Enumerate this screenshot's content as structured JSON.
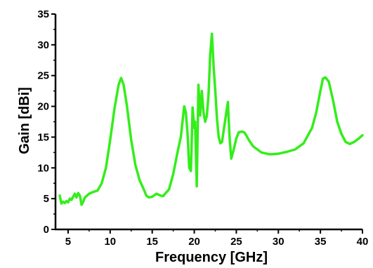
{
  "chart_data": {
    "type": "line",
    "title": "",
    "xlabel": "Frequency [GHz]",
    "ylabel": "Gain [dBi]",
    "xlim": [
      3.5,
      40
    ],
    "ylim": [
      0,
      35
    ],
    "x_ticks": [
      5,
      10,
      15,
      20,
      25,
      30,
      35,
      40
    ],
    "y_ticks": [
      0,
      5,
      10,
      15,
      20,
      25,
      30,
      35
    ],
    "grid": false,
    "legend": "none",
    "colors": {
      "series": "#33ee1a",
      "axis": "#000000"
    },
    "series": [
      {
        "x": [
          4.0,
          4.2,
          4.4,
          4.6,
          4.8,
          5.0,
          5.2,
          5.4,
          5.6,
          5.8,
          6.0,
          6.2,
          6.4,
          6.6,
          6.8,
          7.0,
          7.5,
          8.0,
          8.5,
          9.0,
          9.5,
          10.0,
          10.5,
          11.0,
          11.3,
          11.6,
          12.0,
          12.5,
          13.0,
          13.5,
          14.0,
          14.3,
          14.6,
          15.0,
          15.5,
          16.0,
          16.3,
          16.6,
          17.0,
          17.5,
          18.0,
          18.4,
          18.8,
          19.0,
          19.2,
          19.4,
          19.6,
          19.8,
          20.0,
          20.1,
          20.3,
          20.5,
          20.7,
          20.9,
          21.1,
          21.3,
          21.5,
          21.7,
          21.9,
          22.1,
          22.3,
          22.5,
          22.7,
          22.9,
          23.1,
          23.3,
          23.6,
          24.0,
          24.2,
          24.4,
          24.7,
          25.0,
          25.3,
          25.7,
          26.0,
          26.5,
          27.0,
          28.0,
          29.0,
          30.0,
          31.0,
          32.0,
          33.0,
          34.0,
          34.5,
          35.0,
          35.3,
          35.6,
          36.0,
          36.5,
          37.0,
          37.5,
          38.0,
          38.5,
          39.0,
          39.5,
          40.0
        ],
        "y": [
          5.5,
          4.2,
          4.5,
          4.3,
          4.6,
          4.4,
          5.0,
          4.8,
          5.3,
          5.8,
          5.2,
          5.9,
          5.5,
          4.0,
          4.5,
          5.2,
          5.8,
          6.1,
          6.3,
          7.5,
          10.0,
          14.5,
          19.5,
          23.5,
          24.6,
          23.5,
          20.0,
          14.5,
          10.5,
          8.0,
          6.5,
          5.5,
          5.2,
          5.3,
          5.8,
          5.5,
          5.4,
          5.9,
          6.5,
          9.0,
          12.5,
          15.0,
          20.0,
          19.0,
          15.5,
          10.0,
          9.5,
          19.8,
          16.5,
          17.5,
          7.0,
          23.5,
          18.5,
          22.5,
          19.0,
          17.5,
          18.5,
          22.0,
          28.5,
          31.8,
          26.5,
          22.5,
          18.0,
          15.0,
          14.0,
          14.2,
          17.0,
          20.7,
          15.0,
          11.5,
          13.0,
          14.8,
          15.8,
          15.9,
          15.7,
          14.5,
          13.5,
          12.5,
          12.2,
          12.3,
          12.6,
          13.0,
          14.0,
          16.5,
          19.0,
          22.5,
          24.5,
          24.7,
          24.0,
          21.0,
          17.5,
          15.5,
          14.2,
          13.9,
          14.2,
          14.7,
          15.3
        ]
      }
    ]
  }
}
